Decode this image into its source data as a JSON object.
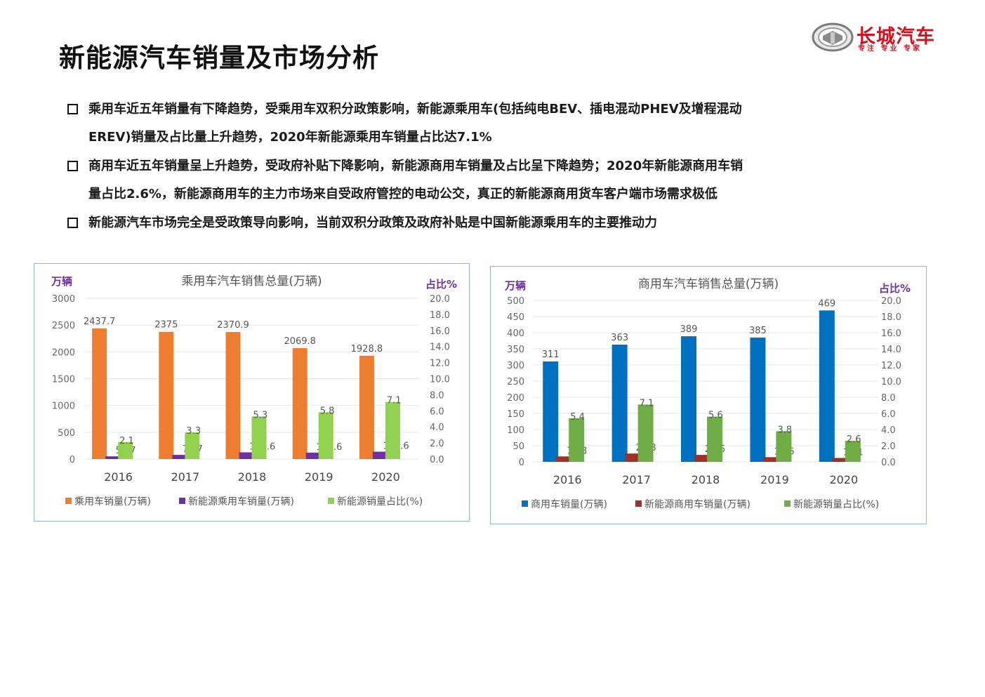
{
  "page": {
    "title": "新能源汽车销量及市场分析",
    "logo": {
      "name": "长城汽车",
      "tagline": "专注 专业 专家"
    }
  },
  "bullets": [
    {
      "line1": "乘用车近五年销量有下降趋势，受乘用车双积分政策影响，新能源乘用车(包括纯电BEV、插电混动PHEV及增程混动",
      "line2": "EREV)销量及占比量上升趋势，2020年新能源乘用车销量占比达7.1%"
    },
    {
      "line1": "商用车近五年销量呈上升趋势，受政府补贴下降影响，新能源商用车销量及占比呈下降趋势；2020年新能源商用车销",
      "line2": "量占比2.6%，新能源商用车的主力市场来自受政府管控的电动公交，真正的新能源商用货车客户端市场需求极低"
    },
    {
      "line1": "新能源汽车市场完全是受政策导向影响，当前双积分政策及政府补贴是中国新能源乘用车的主要推动力",
      "line2": ""
    }
  ],
  "chart_data": [
    {
      "type": "bar",
      "title": "乘用车汽车销售总量(万辆)",
      "ylabel_left": "万辆",
      "ylabel_right": "占比%",
      "categories": [
        "2016",
        "2017",
        "2018",
        "2019",
        "2020"
      ],
      "ylim_left": [
        0,
        3000
      ],
      "yticks_left": [
        "3000",
        "2500",
        "2000",
        "1500",
        "1000",
        "500",
        "0"
      ],
      "ylim_right": [
        0,
        20
      ],
      "yticks_right": [
        "20.0",
        "18.0",
        "16.0",
        "14.0",
        "12.0",
        "10.0",
        "8.0",
        "6.0",
        "4.0",
        "2.0",
        "0.0"
      ],
      "legend_position": "bottom",
      "series": [
        {
          "name": "乘用车销量(万辆)",
          "axis": "left",
          "color": "#ed7d31",
          "values": [
            2437.7,
            2375,
            2370.9,
            2069.8,
            1928.8
          ],
          "labels": [
            "2437.7",
            "2375",
            "2370.9",
            "2069.8",
            "1928.8"
          ]
        },
        {
          "name": "新能源乘用车销量(万辆)",
          "axis": "left",
          "color": "#7030a0",
          "values": [
            50.7,
            77.7,
            125.6,
            120.6,
            137.6
          ],
          "labels": [
            "50.7",
            "77.7",
            "125.6",
            "120.6",
            "137.6"
          ]
        },
        {
          "name": "新能源销量占比(%)",
          "axis": "right",
          "color": "#92d050",
          "values": [
            2.1,
            3.3,
            5.3,
            5.8,
            7.1
          ],
          "labels": [
            "2.1",
            "3.3",
            "5.3",
            "5.8",
            "7.1"
          ]
        }
      ]
    },
    {
      "type": "bar",
      "title": "商用车汽车销售总量(万辆)",
      "ylabel_left": "万辆",
      "ylabel_right": "占比%",
      "categories": [
        "2016",
        "2017",
        "2018",
        "2019",
        "2020"
      ],
      "ylim_left": [
        0,
        500
      ],
      "yticks_left": [
        "500",
        "450",
        "400",
        "350",
        "300",
        "250",
        "200",
        "150",
        "100",
        "50",
        "0"
      ],
      "ylim_right": [
        0,
        20
      ],
      "yticks_right": [
        "20.0",
        "18.0",
        "16.0",
        "14.0",
        "12.0",
        "10.0",
        "8.0",
        "6.0",
        "4.0",
        "2.0",
        "0.0"
      ],
      "legend_position": "bottom",
      "series": [
        {
          "name": "商用车销量(万辆)",
          "axis": "left",
          "color": "#0070c0",
          "values": [
            311,
            363,
            389,
            385,
            469
          ],
          "labels": [
            "311",
            "363",
            "389",
            "385",
            "469"
          ]
        },
        {
          "name": "新能源商用车销量(万辆)",
          "axis": "left",
          "color": "#a0302a",
          "values": [
            16.8,
            25.8,
            21.6,
            14.6,
            12.1
          ],
          "labels": [
            "16.8",
            "25.8",
            "21.6",
            "14.6",
            "12.1"
          ]
        },
        {
          "name": "新能源销量占比(%)",
          "axis": "right",
          "color": "#70ad47",
          "values": [
            5.4,
            7.1,
            5.6,
            3.8,
            2.6
          ],
          "labels": [
            "5.4",
            "7.1",
            "5.6",
            "3.8",
            "2.6"
          ]
        }
      ]
    }
  ]
}
